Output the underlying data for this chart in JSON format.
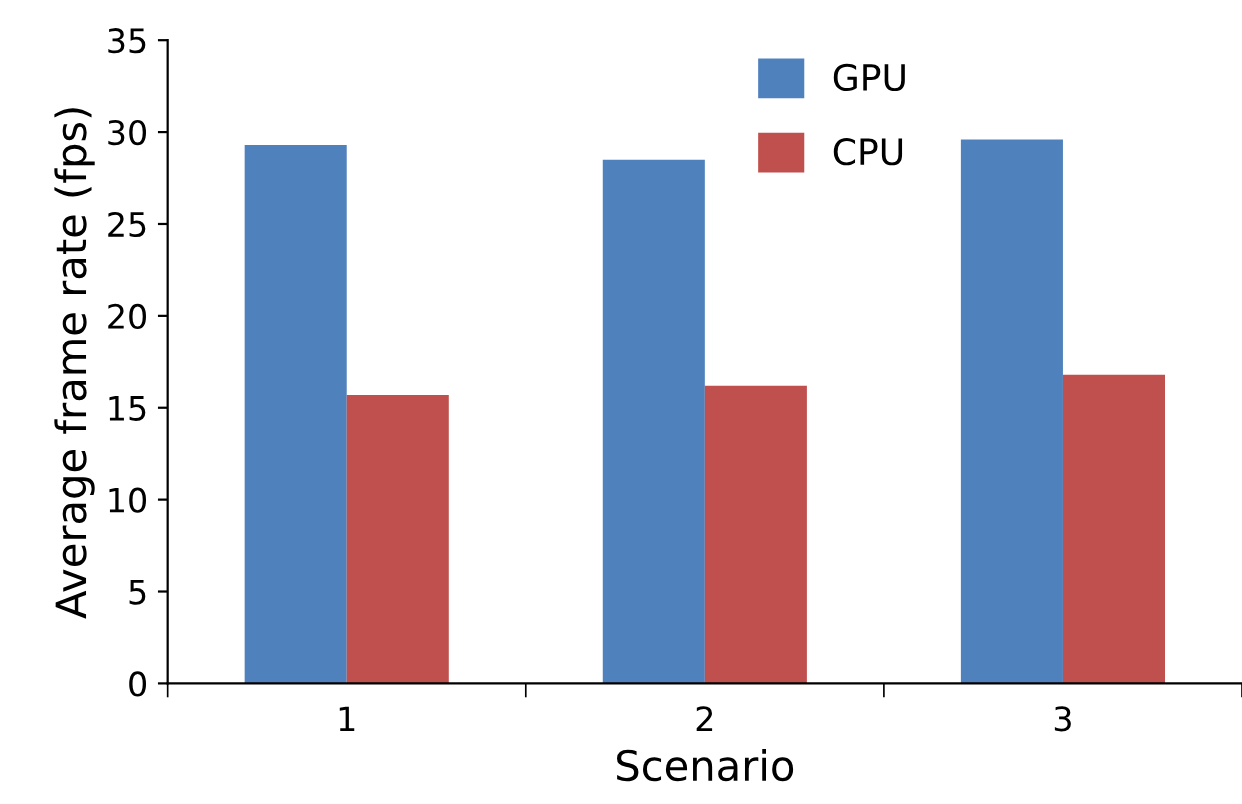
{
  "chart_data": {
    "type": "bar",
    "xlabel": "Scenario",
    "ylabel": "Average frame rate (fps)",
    "categories": [
      "1",
      "2",
      "3"
    ],
    "series": [
      {
        "name": "GPU",
        "color": "#4f81bd",
        "values": [
          29.3,
          28.5,
          29.6
        ]
      },
      {
        "name": "CPU",
        "color": "#c0504d",
        "values": [
          15.7,
          16.2,
          16.8
        ]
      }
    ],
    "ylim": [
      0,
      35
    ],
    "yticks": [
      0,
      5,
      10,
      15,
      20,
      25,
      30,
      35
    ],
    "grid": false,
    "legend": "top"
  }
}
